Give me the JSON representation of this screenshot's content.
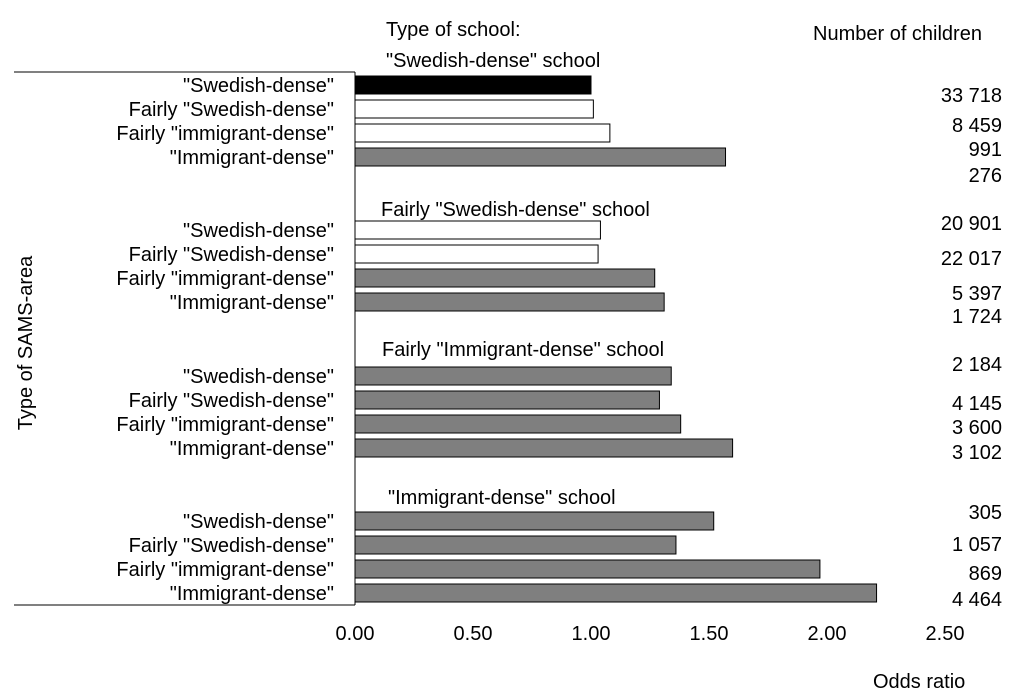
{
  "chart_data": {
    "type": "bar",
    "orientation": "horizontal",
    "column_title_left": "Type of school:",
    "column_title_right": "Number of children",
    "ylabel": "Type of SAMS-area",
    "xlabel": "Odds ratio",
    "xlim": [
      0,
      2.5
    ],
    "xticks": [
      "0.00",
      "0.50",
      "1.00",
      "1.50",
      "2.00",
      "2.50"
    ],
    "xtick_values": [
      0,
      0.5,
      1.0,
      1.5,
      2.0,
      2.5
    ],
    "legend": "none",
    "grid": false,
    "groups": [
      {
        "school": "\"Swedish-dense\" school",
        "bars": [
          {
            "area": "\"Swedish-dense\"",
            "value": 1.0,
            "fill": "black",
            "children": "33 718"
          },
          {
            "area": "Fairly \"Swedish-dense\"",
            "value": 1.01,
            "fill": "white",
            "children": "8 459"
          },
          {
            "area": "Fairly \"immigrant-dense\"",
            "value": 1.08,
            "fill": "white",
            "children": "991"
          },
          {
            "area": "\"Immigrant-dense\"",
            "value": 1.57,
            "fill": "gray",
            "children": "276"
          }
        ]
      },
      {
        "school": "Fairly \"Swedish-dense\" school",
        "bars": [
          {
            "area": "\"Swedish-dense\"",
            "value": 1.04,
            "fill": "white",
            "children": "20 901"
          },
          {
            "area": "Fairly \"Swedish-dense\"",
            "value": 1.03,
            "fill": "white",
            "children": "22 017"
          },
          {
            "area": "Fairly \"immigrant-dense\"",
            "value": 1.27,
            "fill": "gray",
            "children": "5 397"
          },
          {
            "area": "\"Immigrant-dense\"",
            "value": 1.31,
            "fill": "gray",
            "children": "1 724"
          }
        ]
      },
      {
        "school": "Fairly \"Immigrant-dense\" school",
        "bars": [
          {
            "area": "\"Swedish-dense\"",
            "value": 1.34,
            "fill": "gray",
            "children": "2 184"
          },
          {
            "area": "Fairly \"Swedish-dense\"",
            "value": 1.29,
            "fill": "gray",
            "children": "4 145"
          },
          {
            "area": "Fairly \"immigrant-dense\"",
            "value": 1.38,
            "fill": "gray",
            "children": "3 600"
          },
          {
            "area": "\"Immigrant-dense\"",
            "value": 1.6,
            "fill": "gray",
            "children": "3 102"
          }
        ]
      },
      {
        "school": "\"Immigrant-dense\" school",
        "bars": [
          {
            "area": "\"Swedish-dense\"",
            "value": 1.52,
            "fill": "gray",
            "children": "305"
          },
          {
            "area": "Fairly \"Swedish-dense\"",
            "value": 1.36,
            "fill": "gray",
            "children": "1 057"
          },
          {
            "area": "Fairly \"immigrant-dense\"",
            "value": 1.97,
            "fill": "gray",
            "children": "869"
          },
          {
            "area": "\"Immigrant-dense\"",
            "value": 2.21,
            "fill": "gray",
            "children": "4 464"
          }
        ]
      }
    ],
    "colors": {
      "black": "#000000",
      "white": "#ffffff",
      "gray": "#7f7f7f",
      "stroke": "#000000"
    }
  }
}
